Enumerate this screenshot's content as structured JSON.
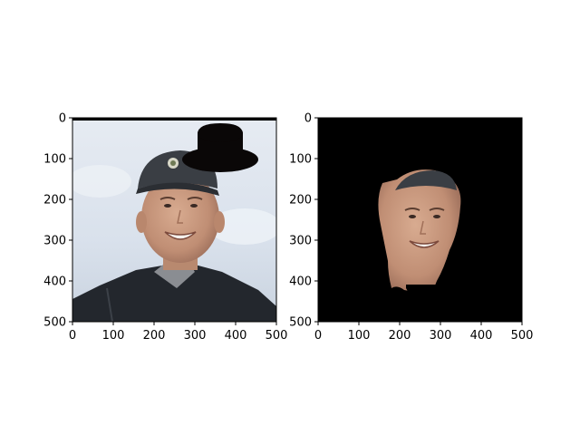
{
  "figure": {
    "panels": [
      {
        "name": "original-with-hat",
        "content": "photo of smiling young man in dark baseball cap and dark jacket against a cloudy sky, with a black top hat drawn in the upper-right",
        "x_ticks": [
          "0",
          "100",
          "200",
          "300",
          "400",
          "500"
        ],
        "y_ticks": [
          "0",
          "100",
          "200",
          "300",
          "400",
          "500"
        ],
        "x_range": [
          0,
          500
        ],
        "y_range": [
          0,
          500
        ]
      },
      {
        "name": "face-segmentation",
        "content": "black background with only the segmented face region of the same man visible",
        "x_ticks": [
          "0",
          "100",
          "200",
          "300",
          "400",
          "500"
        ],
        "y_ticks": [
          "0",
          "100",
          "200",
          "300",
          "400",
          "500"
        ],
        "x_range": [
          0,
          500
        ],
        "y_range": [
          0,
          500
        ]
      }
    ]
  },
  "colors": {
    "sky": "#dfe6ef",
    "skin": "#c89a80",
    "cap": "#3a3e44",
    "jacket": "#23272d",
    "hat": "#0a0707",
    "mask_background": "#000000"
  }
}
